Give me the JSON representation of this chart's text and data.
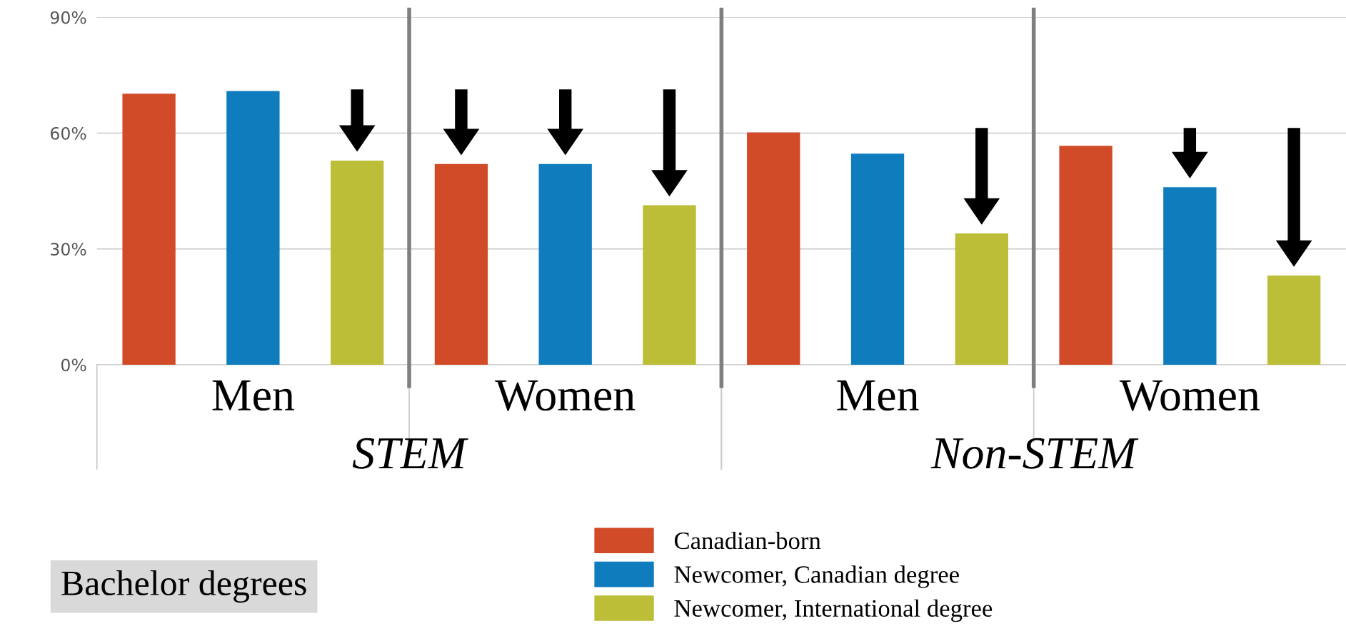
{
  "chart_data": {
    "type": "bar",
    "title": "Bachelor degrees",
    "categories": [
      "Men",
      "Women",
      "Men",
      "Women"
    ],
    "annotations": [
      "STEM",
      "Non-STEM"
    ],
    "series": [
      {
        "name": "Canadian-born",
        "color": "#d14b28",
        "values": [
          70.2,
          52,
          60.2,
          56.7
        ]
      },
      {
        "name": "Newcomer, Canadian degree",
        "color": "#0f7dbd",
        "values": [
          70.9,
          52,
          54.7,
          46
        ]
      },
      {
        "name": "Newcomer, International degree",
        "color": "#bbbe36",
        "values": [
          52.9,
          41.3,
          34,
          23.1
        ]
      }
    ],
    "ylim": [
      0,
      90
    ],
    "yticks": [
      {
        "value": 0,
        "label": "0%"
      },
      {
        "value": 30,
        "label": "30%"
      },
      {
        "value": 60,
        "label": "60%"
      },
      {
        "value": 90,
        "label": "90%"
      }
    ],
    "grid": "y",
    "legend": "bottom"
  }
}
